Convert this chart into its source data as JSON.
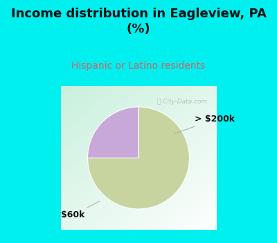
{
  "title": "Income distribution in Eagleview, PA\n(%)",
  "subtitle": "Hispanic or Latino residents",
  "slices": [
    75.0,
    25.0
  ],
  "slice_order": [
    "$60k",
    "> $200k"
  ],
  "colors": [
    "#c8d4a0",
    "#c8a8d8"
  ],
  "bg_color": "#00efef",
  "chart_bg_top_left": "#c8f0e0",
  "chart_bg_bottom_right": "#ffffff",
  "title_fontsize": 13,
  "subtitle_fontsize": 10,
  "subtitle_color": "#cc6666",
  "label_fontsize": 9,
  "startangle": 90
}
